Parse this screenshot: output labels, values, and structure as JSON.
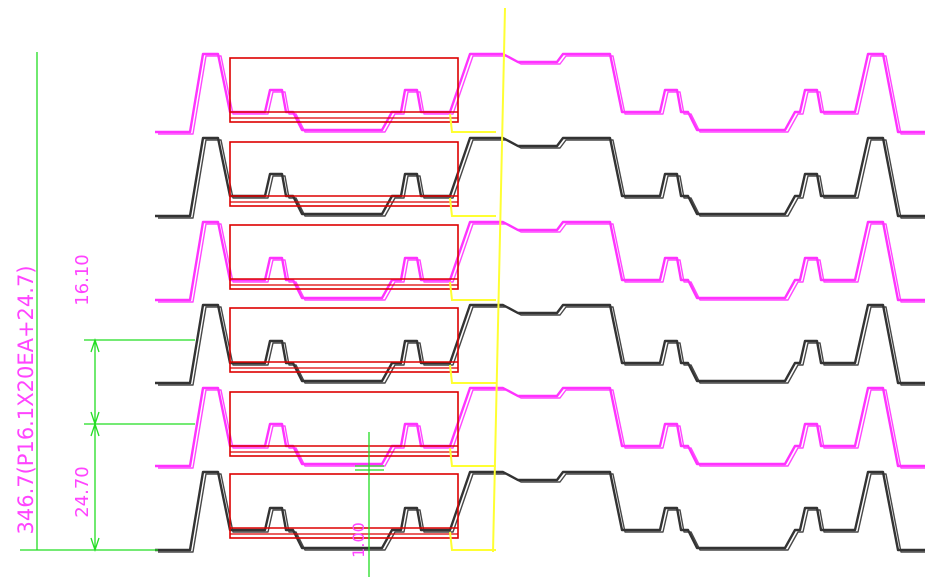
{
  "drawing": {
    "background": "#ffffff",
    "colors": {
      "magenta_profile": "#ff33ff",
      "black_profile": "#333333",
      "red_outline": "#dd0000",
      "yellow_guide": "#ffff33",
      "green_dimension": "#22dd22",
      "dimension_text": "#ff44ff"
    },
    "profile_layers": [
      "magenta",
      "black",
      "magenta",
      "black",
      "magenta",
      "black"
    ],
    "red_box_count": 6
  },
  "dimensions": {
    "overall_label": "346.7(P16.1X20EA+24.7)",
    "pitch_label": "16.10",
    "offset_label": "24.70",
    "thickness_label": "1.00"
  }
}
